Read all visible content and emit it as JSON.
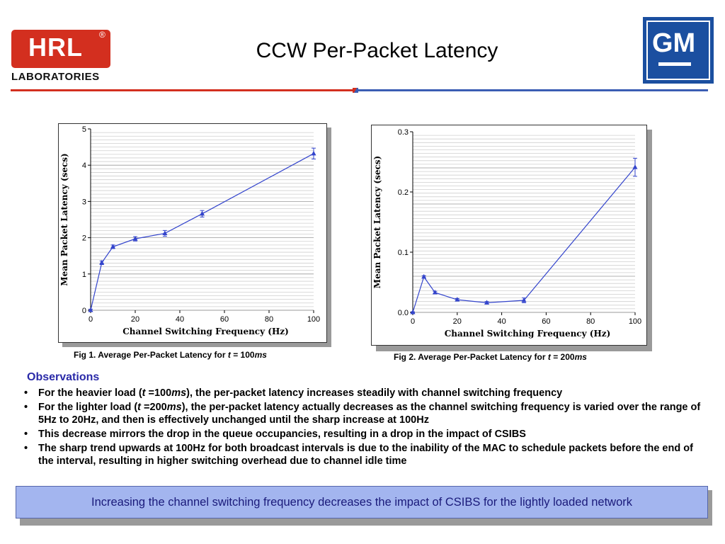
{
  "header": {
    "logo_left": {
      "main": "HRL",
      "sub": "LABORATORIES",
      "reg": "®"
    },
    "title": "CCW Per-Packet Latency",
    "logo_right": {
      "text": "GM"
    }
  },
  "colors": {
    "accent_red": "#d32f1f",
    "accent_blue": "#3a5db3",
    "series": "#3344cc",
    "box_bg": "#a3b5ef"
  },
  "chart_data": [
    {
      "type": "line",
      "caption_prefix": "Fig 1.  Average Per-Packet Latency for ",
      "caption_t": "t",
      "caption_mid": " = 100",
      "caption_unit": "ms",
      "xlabel": "Channel Switching Frequency (Hz)",
      "ylabel": "Mean Packet Latency (secs)",
      "xlim": [
        0,
        100
      ],
      "ylim": [
        0,
        5
      ],
      "x_ticks": [
        0,
        20,
        40,
        60,
        80,
        100
      ],
      "y_ticks": [
        0,
        1,
        2,
        3,
        4,
        5
      ],
      "y_tick_labels": [
        "0",
        "1",
        "2",
        "3",
        "4",
        "5"
      ],
      "grid": true,
      "series": [
        {
          "x": [
            0,
            5,
            10,
            20,
            33.3,
            50,
            100
          ],
          "y": [
            0,
            1.31,
            1.75,
            1.97,
            2.12,
            2.66,
            4.32
          ],
          "err": [
            0.03,
            0.05,
            0.05,
            0.06,
            0.08,
            0.09,
            0.15
          ]
        }
      ]
    },
    {
      "type": "line",
      "caption_prefix": "Fig 2.  Average Per-Packet Latency for ",
      "caption_t": "t",
      "caption_mid": " = 200",
      "caption_unit": "ms",
      "xlabel": "Channel Switching Frequency (Hz)",
      "ylabel": "Mean Packet Latency (secs)",
      "xlim": [
        0,
        100
      ],
      "ylim": [
        0,
        0.3
      ],
      "x_ticks": [
        0,
        20,
        40,
        60,
        80,
        100
      ],
      "y_ticks": [
        0,
        0.1,
        0.2,
        0.3
      ],
      "y_tick_labels": [
        "0.0",
        "0.1",
        "0.2",
        "0.3"
      ],
      "grid": true,
      "series": [
        {
          "x": [
            0,
            5,
            10,
            20,
            33.3,
            50,
            100
          ],
          "y": [
            0,
            0.059,
            0.033,
            0.021,
            0.016,
            0.02,
            0.241
          ],
          "err": [
            0.001,
            0.002,
            0.002,
            0.002,
            0.002,
            0.004,
            0.015
          ]
        }
      ]
    }
  ],
  "observations": {
    "title": "Observations",
    "bullet": "•",
    "items": [
      {
        "a": "For the heavier load (",
        "t": "t",
        "b": " =100",
        "u": "ms",
        "c": "), the per-packet latency increases steadily with channel switching frequency"
      },
      {
        "a": "For the lighter load (",
        "t": "t",
        "b": " =200",
        "u": "ms",
        "c": "), the per-packet latency actually decreases as the channel switching frequency is varied over the range of 5Hz to 20Hz, and then is effectively unchanged until the sharp increase at 100Hz"
      },
      {
        "text": "This decrease mirrors the drop in the queue occupancies, resulting in a drop in the impact of CSIBS"
      },
      {
        "text": "The sharp trend upwards at 100Hz for both broadcast intervals is due to the inability of the MAC to schedule packets before the end of the interval, resulting in higher switching overhead due to channel idle time"
      }
    ]
  },
  "conclusion": "Increasing the channel switching frequency decreases the impact of CSIBS for the lightly loaded network"
}
